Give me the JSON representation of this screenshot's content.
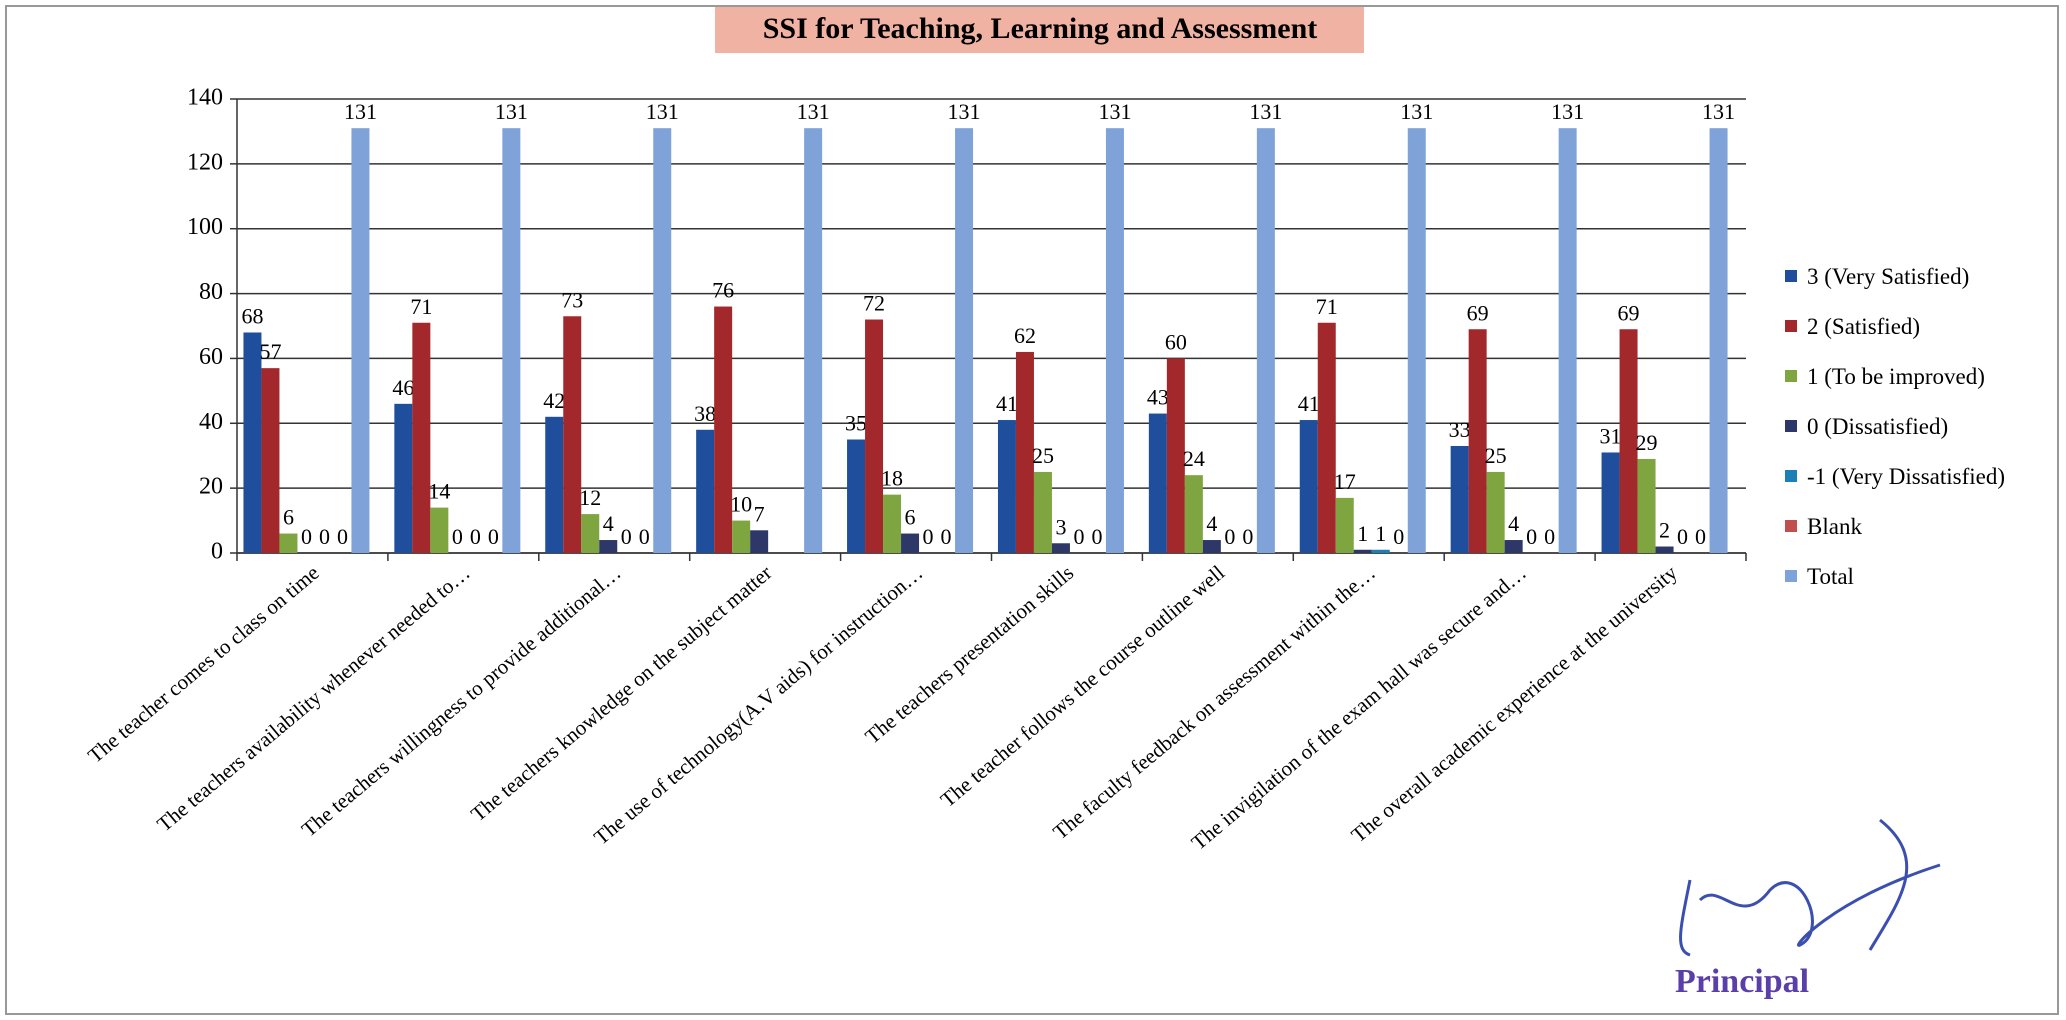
{
  "chart_data": {
    "type": "bar",
    "title": "SSI for Teaching, Learning and Assessment",
    "annotation": "Principal",
    "categories": [
      "The teacher comes to class on time",
      "The teachers availability whenever needed to…",
      "The teachers willingness to provide additional…",
      "The teachers knowledge on the subject matter",
      "The use of technology(A.V aids) for instruction…",
      "The teachers presentation skills",
      "The teacher follows the course outline well",
      "The faculty feedback on assessment within the…",
      "The invigilation of the exam hall was secure and…",
      "The overall academic experience at the university"
    ],
    "series": [
      {
        "name": "3 (Very Satisfied)",
        "color": "#1f4e9c",
        "values": [
          68,
          46,
          42,
          38,
          35,
          41,
          43,
          41,
          33,
          31
        ]
      },
      {
        "name": "2 (Satisfied)",
        "color": "#a3282b",
        "values": [
          57,
          71,
          73,
          76,
          72,
          62,
          60,
          71,
          69,
          69
        ]
      },
      {
        "name": "1 (To be improved)",
        "color": "#7ea53f",
        "values": [
          6,
          14,
          12,
          10,
          18,
          25,
          24,
          17,
          25,
          29
        ]
      },
      {
        "name": "0 (Dissatisfied)",
        "color": "#2d3868",
        "values": [
          0,
          0,
          4,
          7,
          6,
          3,
          4,
          1,
          4,
          2
        ]
      },
      {
        "name": "-1 (Very Dissatisfied)",
        "color": "#1b80b6",
        "values": [
          0,
          0,
          0,
          null,
          0,
          0,
          0,
          1,
          0,
          0
        ]
      },
      {
        "name": "Blank",
        "color": "#c0504d",
        "values": [
          0,
          0,
          0,
          null,
          0,
          0,
          0,
          0,
          0,
          0
        ]
      },
      {
        "name": "Total",
        "color": "#7fa2d9",
        "values": [
          131,
          131,
          131,
          131,
          131,
          131,
          131,
          131,
          131,
          131
        ]
      }
    ],
    "ylim": [
      0,
      140
    ],
    "yticks": [
      0,
      20,
      40,
      60,
      80,
      100,
      120,
      140
    ],
    "grid": true,
    "legend": "right"
  }
}
